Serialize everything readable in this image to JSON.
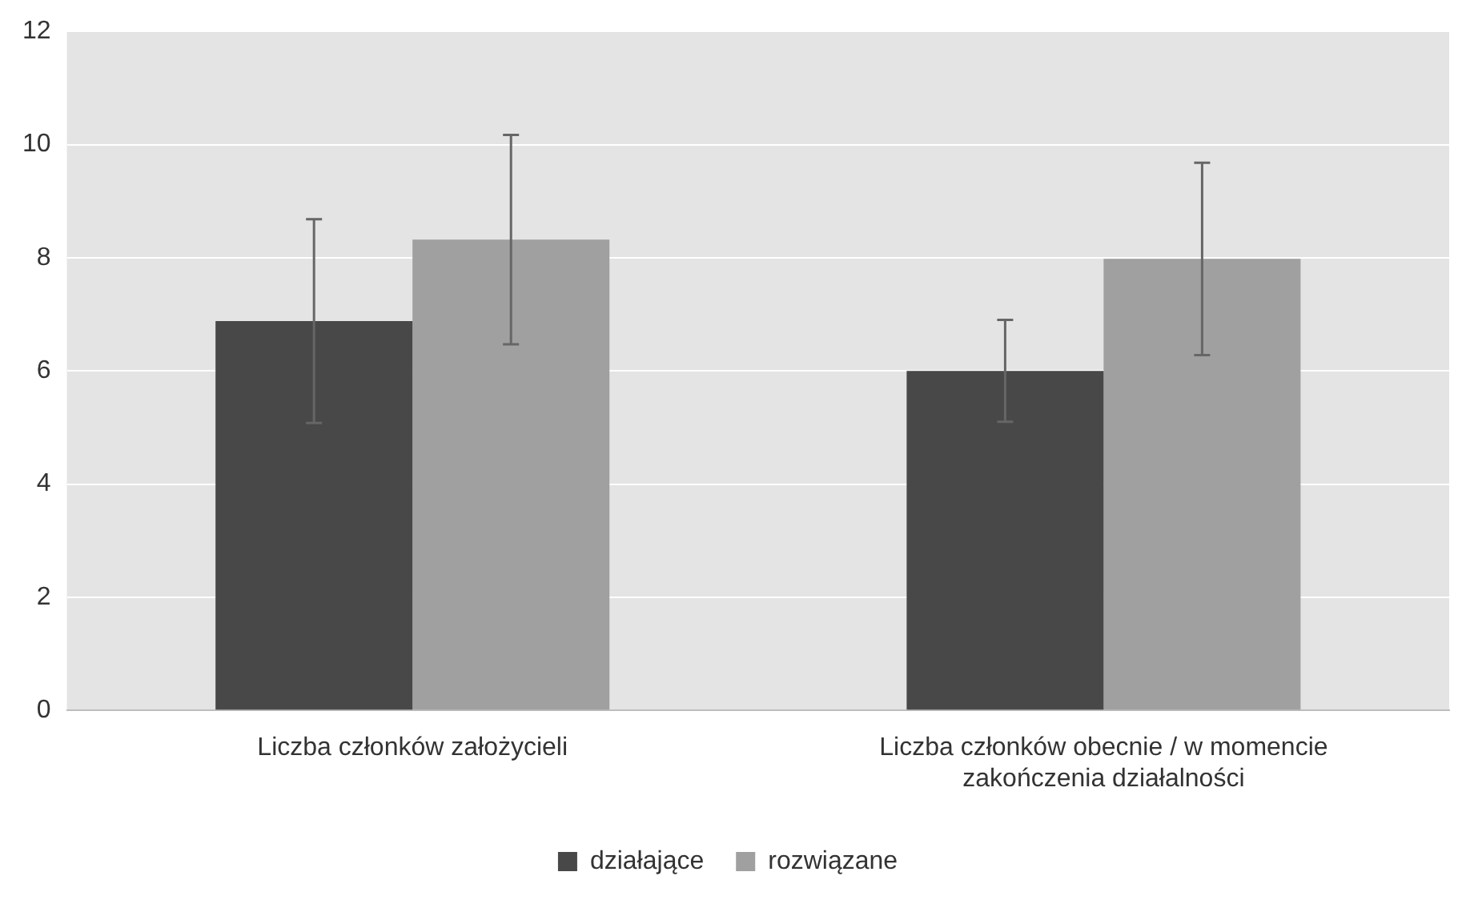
{
  "chart_data": {
    "type": "bar",
    "categories": [
      "Liczba członków założycieli",
      "Liczba członków obecnie / w momencie zakończenia działalności"
    ],
    "series": [
      {
        "name": "działające",
        "color": "#484848",
        "values": [
          6.88,
          6.0
        ],
        "errors": [
          1.8,
          0.9
        ]
      },
      {
        "name": "rozwiązane",
        "color": "#a0a0a0",
        "values": [
          8.32,
          7.98
        ],
        "errors": [
          1.85,
          1.7
        ]
      }
    ],
    "ylim": [
      0,
      12
    ],
    "yticks": [
      0,
      2,
      4,
      6,
      8,
      10,
      12
    ],
    "grid": "y",
    "legend": "bottom"
  }
}
